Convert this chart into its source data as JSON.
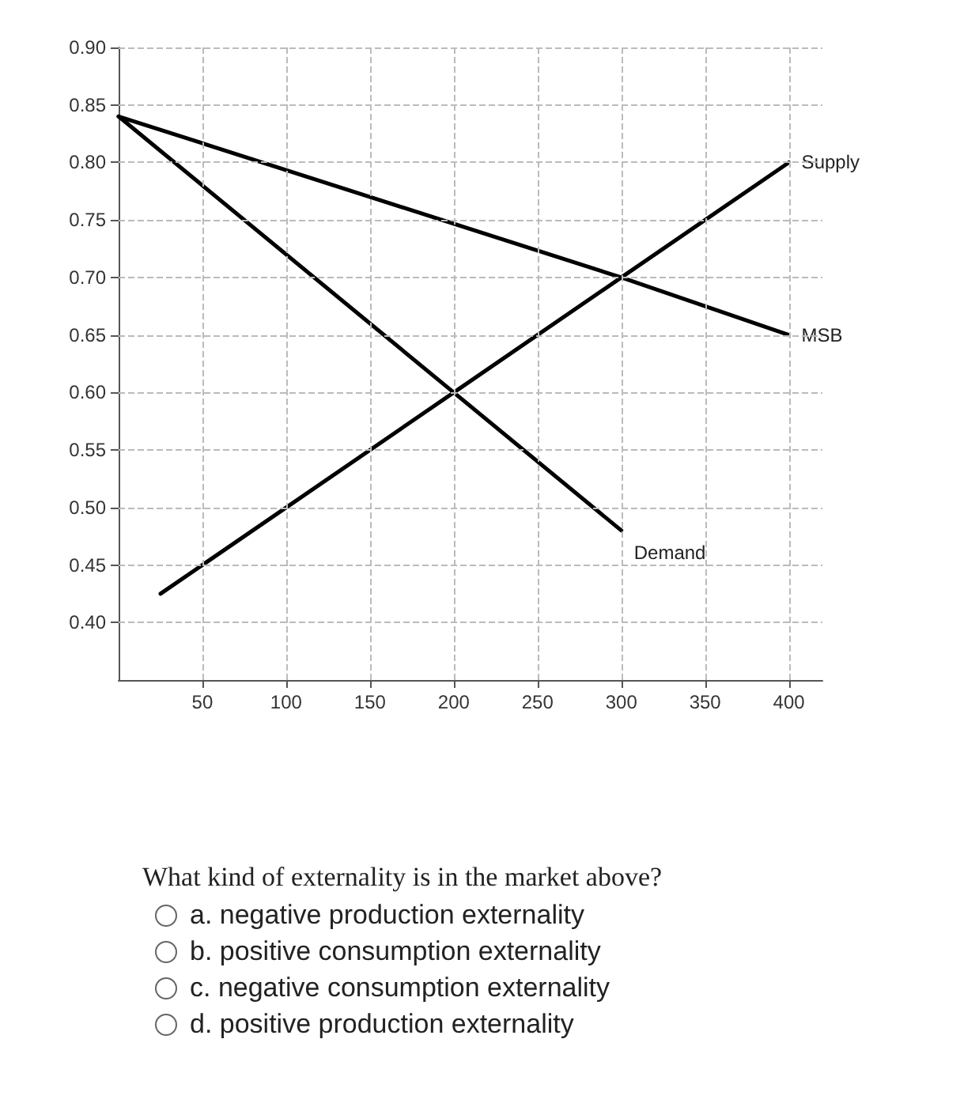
{
  "chart_data": {
    "type": "line",
    "xlim": [
      0,
      420
    ],
    "xticks": [
      50,
      100,
      150,
      200,
      250,
      300,
      350,
      400
    ],
    "ylim": [
      0.35,
      0.9
    ],
    "yticks": [
      {
        "value": 0.4,
        "label": "0.40"
      },
      {
        "value": 0.45,
        "label": "0.45"
      },
      {
        "value": 0.5,
        "label": "0.50"
      },
      {
        "value": 0.55,
        "label": "0.55"
      },
      {
        "value": 0.6,
        "label": "0.60"
      },
      {
        "value": 0.65,
        "label": "0.65"
      },
      {
        "value": 0.7,
        "label": "0.70"
      },
      {
        "value": 0.75,
        "label": "0.75"
      },
      {
        "value": 0.8,
        "label": "0.80"
      },
      {
        "value": 0.85,
        "label": "0.85"
      },
      {
        "value": 0.9,
        "label": "0.90"
      }
    ],
    "series": [
      {
        "name": "Supply",
        "color": "#000000",
        "x": [
          25,
          200,
          300,
          400
        ],
        "values": [
          0.425,
          0.6,
          0.7,
          0.8
        ]
      },
      {
        "name": "MSB",
        "color": "#000000",
        "x": [
          0,
          300,
          400
        ],
        "values": [
          0.84,
          0.7,
          0.65
        ]
      },
      {
        "name": "Demand",
        "color": "#000000",
        "x": [
          0,
          200,
          300
        ],
        "values": [
          0.84,
          0.6,
          0.48
        ]
      }
    ],
    "grid": true,
    "legend": false,
    "marker": "none",
    "line_style": "solid",
    "annotations": [
      "What kind of externality is in the market above?",
      "a. negative production externality",
      "b. positive consumption externality",
      "c. negative consumption externality",
      "d. positive production externality"
    ]
  }
}
